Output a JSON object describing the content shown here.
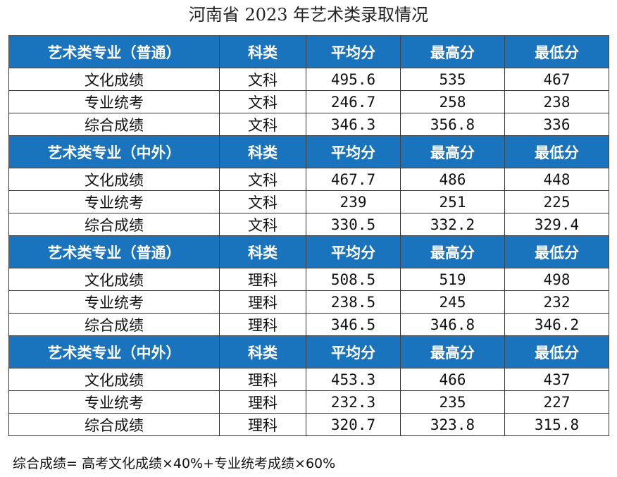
{
  "title": "河南省 2023 年艺术类录取情况",
  "columns": [
    "科类",
    "平均分",
    "最高分",
    "最低分"
  ],
  "sections": [
    {
      "header": "艺术类专业（普通）",
      "rows": [
        {
          "name": "文化成绩",
          "subject": "文科",
          "avg": "495.6",
          "max": "535",
          "min": "467"
        },
        {
          "name": "专业统考",
          "subject": "文科",
          "avg": "246.7",
          "max": "258",
          "min": "238"
        },
        {
          "name": "综合成绩",
          "subject": "文科",
          "avg": "346.3",
          "max": "356.8",
          "min": "336"
        }
      ]
    },
    {
      "header": "艺术类专业（中外）",
      "rows": [
        {
          "name": "文化成绩",
          "subject": "文科",
          "avg": "467.7",
          "max": "486",
          "min": "448"
        },
        {
          "name": "专业统考",
          "subject": "文科",
          "avg": "239",
          "max": "251",
          "min": "225"
        },
        {
          "name": "综合成绩",
          "subject": "文科",
          "avg": "330.5",
          "max": "332.2",
          "min": "329.4"
        }
      ]
    },
    {
      "header": "艺术类专业（普通）",
      "rows": [
        {
          "name": "文化成绩",
          "subject": "理科",
          "avg": "508.5",
          "max": "519",
          "min": "498"
        },
        {
          "name": "专业统考",
          "subject": "理科",
          "avg": "238.5",
          "max": "245",
          "min": "232"
        },
        {
          "name": "综合成绩",
          "subject": "理科",
          "avg": "346.5",
          "max": "346.8",
          "min": "346.2"
        }
      ]
    },
    {
      "header": "艺术类专业（中外）",
      "rows": [
        {
          "name": "文化成绩",
          "subject": "理科",
          "avg": "453.3",
          "max": "466",
          "min": "437"
        },
        {
          "name": "专业统考",
          "subject": "理科",
          "avg": "232.3",
          "max": "235",
          "min": "227"
        },
        {
          "name": "综合成绩",
          "subject": "理科",
          "avg": "320.7",
          "max": "323.8",
          "min": "315.8"
        }
      ]
    }
  ],
  "footnote": "综合成绩= 高考文化成绩×40%+专业统考成绩×60%",
  "colors": {
    "header_bg": "#1a73bd",
    "header_text": "#ffffff"
  }
}
